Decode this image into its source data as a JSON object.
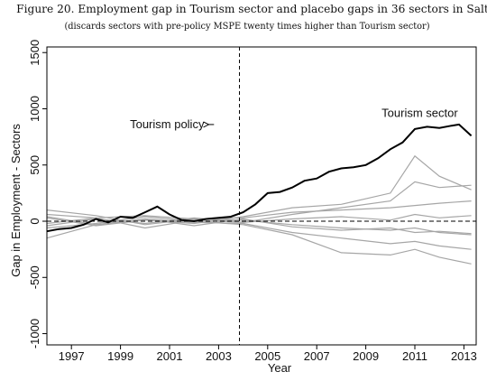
{
  "title": "Figure 20. Employment gap in Tourism sector and placebo gaps in 36 sectors in Salt",
  "subtitle": "(discards sectors with pre-policy MSPE twenty times higher than Tourism sector)",
  "colors": {
    "treated": "#000000",
    "placebo": "#a6a6a6",
    "reference": "#000000"
  },
  "chart_data": {
    "type": "line",
    "title": "Figure 20. Employment gap in Tourism sector and placebo gaps in 36 sectors in Salt",
    "subtitle": "(discards sectors with pre-policy MSPE twenty times higher than Tourism sector)",
    "xlabel": "Year",
    "ylabel": "Gap in Employment - Sectors",
    "xlim": [
      1996.0,
      2013.5
    ],
    "ylim": [
      -1100,
      1550
    ],
    "xticks": [
      1997,
      1999,
      2001,
      2003,
      2005,
      2007,
      2009,
      2011,
      2013
    ],
    "yticks": [
      -1000,
      -500,
      0,
      500,
      1000,
      1500
    ],
    "xtick_labels": [
      "1997",
      "1999",
      "2001",
      "2003",
      "2005",
      "2007",
      "2009",
      "2011",
      "2013"
    ],
    "ytick_labels": [
      "-1000",
      "-500",
      "0",
      "500",
      "1000",
      "1500"
    ],
    "grid": false,
    "policy_line_x": 2003.85,
    "zero_line_y": 0,
    "annotations": [
      {
        "text": "Tourism policy",
        "x": 2000.9,
        "y": 860,
        "arrow_to": [
          2002.6,
          860
        ]
      },
      {
        "text": "Tourism sector",
        "x": 2011.2,
        "y": 960
      }
    ],
    "treated": {
      "name": "Tourism sector",
      "x": [
        1996.0,
        1996.5,
        1997.0,
        1997.5,
        1998.0,
        1998.5,
        1999.0,
        1999.5,
        2000.0,
        2000.5,
        2001.0,
        2001.5,
        2002.0,
        2002.5,
        2003.0,
        2003.5,
        2004.0,
        2004.5,
        2005.0,
        2005.5,
        2006.0,
        2006.5,
        2007.0,
        2007.5,
        2008.0,
        2008.5,
        2009.0,
        2009.5,
        2010.0,
        2010.5,
        2011.0,
        2011.5,
        2012.0,
        2012.5,
        2012.8,
        2013.0,
        2013.3
      ],
      "y": [
        -90,
        -70,
        -60,
        -30,
        20,
        -10,
        40,
        30,
        80,
        130,
        60,
        10,
        0,
        20,
        30,
        40,
        80,
        150,
        250,
        260,
        300,
        360,
        380,
        440,
        470,
        480,
        500,
        560,
        640,
        700,
        820,
        840,
        830,
        850,
        860,
        820,
        760
      ]
    },
    "placebos": [
      {
        "x": [
          1996,
          1998,
          2000,
          2002,
          2004,
          2006,
          2008,
          2010,
          2011,
          2012,
          2013.3
        ],
        "y": [
          60,
          30,
          50,
          20,
          10,
          -30,
          -60,
          -80,
          -60,
          -100,
          -120
        ]
      },
      {
        "x": [
          1996,
          1998,
          2000,
          2002,
          2004,
          2006,
          2008,
          2010,
          2011,
          2012,
          2013.3
        ],
        "y": [
          -40,
          20,
          -20,
          30,
          -10,
          60,
          120,
          180,
          350,
          300,
          320
        ]
      },
      {
        "x": [
          1996,
          1998,
          2000,
          2002,
          2004,
          2006,
          2008,
          2010,
          2011,
          2012,
          2013.3
        ],
        "y": [
          30,
          -40,
          10,
          -20,
          40,
          120,
          150,
          250,
          580,
          400,
          280
        ]
      },
      {
        "x": [
          1996,
          1998,
          2000,
          2002,
          2004,
          2006,
          2008,
          2010,
          2011,
          2012,
          2013.3
        ],
        "y": [
          -60,
          -20,
          40,
          0,
          -30,
          -120,
          -280,
          -300,
          -250,
          -320,
          -380
        ]
      },
      {
        "x": [
          1996,
          1998,
          2000,
          2002,
          2004,
          2006,
          2008,
          2010,
          2011,
          2012,
          2013.3
        ],
        "y": [
          -150,
          -30,
          20,
          -10,
          -20,
          -100,
          -150,
          -200,
          -180,
          -220,
          -250
        ]
      },
      {
        "x": [
          1996,
          1998,
          2000,
          2002,
          2004,
          2006,
          2008,
          2010,
          2011,
          2012,
          2013.3
        ],
        "y": [
          100,
          50,
          -30,
          20,
          30,
          80,
          100,
          120,
          140,
          160,
          180
        ]
      },
      {
        "x": [
          1996,
          1998,
          2000,
          2002,
          2004,
          2006,
          2008,
          2010,
          2011,
          2012,
          2013.3
        ],
        "y": [
          -20,
          30,
          -60,
          10,
          -10,
          20,
          40,
          10,
          60,
          30,
          50
        ]
      },
      {
        "x": [
          1996,
          1998,
          2000,
          2002,
          2004,
          2006,
          2008,
          2010,
          2011,
          2012,
          2013.3
        ],
        "y": [
          40,
          -30,
          20,
          -40,
          20,
          -50,
          -80,
          -60,
          -100,
          -90,
          -110
        ]
      }
    ]
  }
}
